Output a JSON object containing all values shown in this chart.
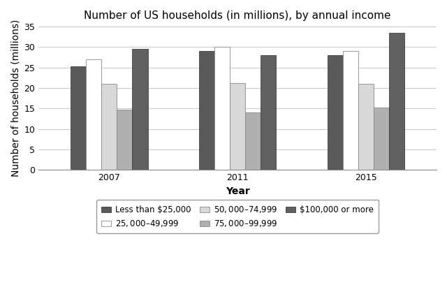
{
  "title": "Number of US households (in millions), by annual income",
  "xlabel": "Year",
  "ylabel": "Number of households (millions)",
  "years": [
    "2007",
    "2011",
    "2015"
  ],
  "categories": [
    "Less than $25,000",
    "$25,000–$49,999",
    "$50,000–$74,999",
    "$75,000–$99,999",
    "$100,000 or more"
  ],
  "values": {
    "Less than $25,000": [
      25.3,
      29.0,
      28.1
    ],
    "$25,000–$49,999": [
      27.0,
      30.0,
      29.0
    ],
    "$50,000–$74,999": [
      21.0,
      21.2,
      21.0
    ],
    "$75,000–$99,999": [
      14.7,
      14.0,
      15.2
    ],
    "$100,000 or more": [
      29.6,
      28.0,
      33.5
    ]
  },
  "colors": {
    "Less than $25,000": "#5a5a5a",
    "$25,000–$49,999": "#ffffff",
    "$50,000–$74,999": "#d8d8d8",
    "$75,000–$99,999": "#b0b0b0",
    "$100,000 or more": "#606060"
  },
  "edgecolors": {
    "Less than $25,000": "#404040",
    "$25,000–$49,999": "#888888",
    "$50,000–$74,999": "#888888",
    "$75,000–$99,999": "#888888",
    "$100,000 or more": "#404040"
  },
  "ylim": [
    0,
    35
  ],
  "yticks": [
    0,
    5,
    10,
    15,
    20,
    25,
    30,
    35
  ],
  "bar_width": 0.12,
  "background_color": "#ffffff",
  "title_fontsize": 11,
  "axis_label_fontsize": 10,
  "tick_fontsize": 9,
  "legend_fontsize": 8.5
}
